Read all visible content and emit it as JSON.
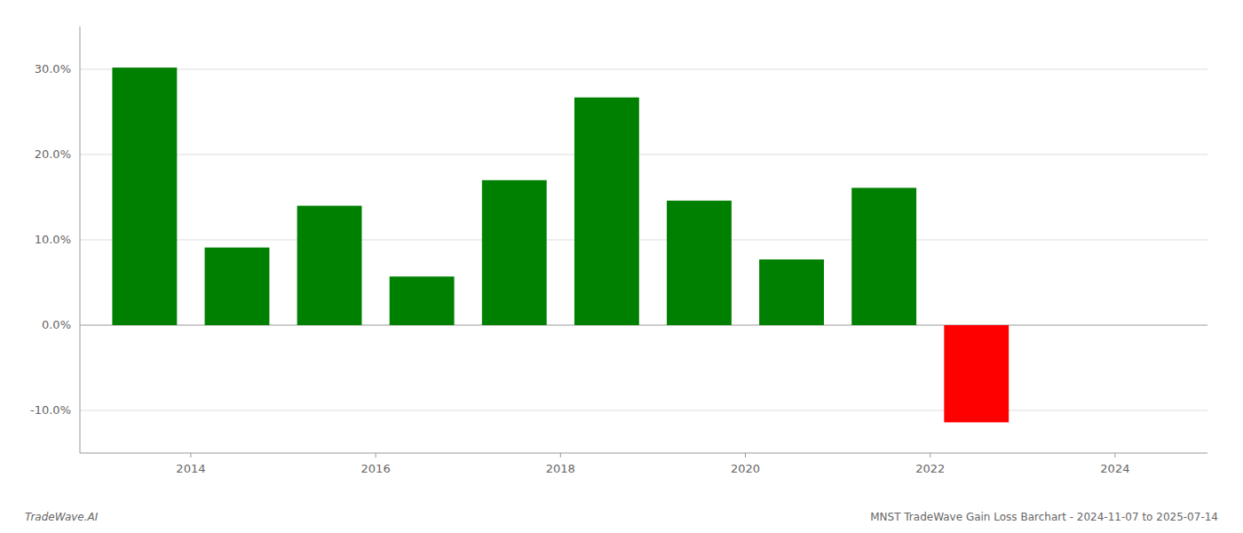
{
  "chart_data": {
    "type": "bar",
    "x": [
      2013.5,
      2014.5,
      2015.5,
      2016.5,
      2017.5,
      2018.5,
      2019.5,
      2020.5,
      2021.5,
      2022.5
    ],
    "values": [
      0.302,
      0.091,
      0.14,
      0.057,
      0.17,
      0.267,
      0.146,
      0.077,
      0.161,
      -0.114
    ],
    "colors": [
      "#008000",
      "#008000",
      "#008000",
      "#008000",
      "#008000",
      "#008000",
      "#008000",
      "#008000",
      "#008000",
      "#ff0000"
    ],
    "xlim": [
      2012.8,
      2025.0
    ],
    "xticks": [
      2014,
      2016,
      2018,
      2020,
      2022,
      2024
    ],
    "ylim": [
      -0.15,
      0.35
    ],
    "yticks": [
      {
        "value": -0.1,
        "label": "-10.0%"
      },
      {
        "value": 0.0,
        "label": "0.0%"
      },
      {
        "value": 0.1,
        "label": "10.0%"
      },
      {
        "value": 0.2,
        "label": "20.0%"
      },
      {
        "value": 0.3,
        "label": "30.0%"
      }
    ],
    "grid": true,
    "annotations": [
      "TradeWave.AI",
      "MNST TradeWave Gain Loss Barchart - 2024-11-07 to 2025-07-14"
    ]
  }
}
